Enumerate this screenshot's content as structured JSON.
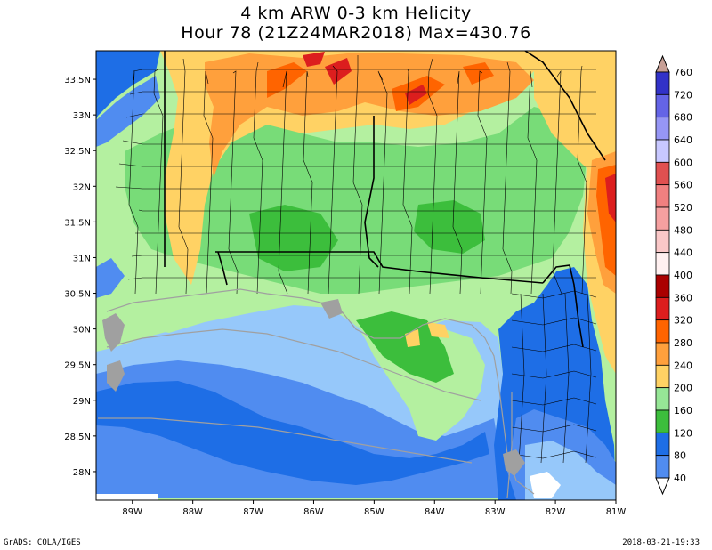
{
  "title": {
    "line1": "4 km ARW 0-3 km Helicity",
    "line2": "Hour 78 (21Z24MAR2018) Max=430.76"
  },
  "map": {
    "lat_ticks": [
      "33.5N",
      "33N",
      "32.5N",
      "32N",
      "31.5N",
      "31N",
      "30.5N",
      "30N",
      "29.5N",
      "29N",
      "28.5N",
      "28N"
    ],
    "lon_ticks": [
      "89W",
      "88W",
      "87W",
      "86W",
      "85W",
      "84W",
      "83W",
      "82W",
      "81W"
    ],
    "lat_range": [
      27.6,
      33.9
    ],
    "lon_range": [
      -89.6,
      -81.0
    ],
    "max_value": 430.76
  },
  "colorbar": {
    "levels": [
      "760",
      "720",
      "680",
      "640",
      "600",
      "560",
      "520",
      "480",
      "440",
      "400",
      "360",
      "320",
      "280",
      "240",
      "200",
      "160",
      "120",
      "80",
      "40"
    ],
    "colors": [
      "#3232c8",
      "#6464e6",
      "#9696f5",
      "#c8c8ff",
      "#e05050",
      "#f08080",
      "#f5a0a0",
      "#fac8c8",
      "#fff0f0",
      "#aa0000",
      "#dc1e1e",
      "#ff6400",
      "#ffa03c",
      "#ffd264",
      "#96e696",
      "#3cbe3c",
      "#1e6ee6",
      "#508cf0",
      "#96c8fa"
    ],
    "top_color": "#c8a096",
    "bottom_color": "#ffffff"
  },
  "colors": {
    "ocean_deep": "#1e6ee6",
    "ocean_mid": "#508cf0",
    "ocean_light": "#96c8fa",
    "land_light_green": "#b4f0a0",
    "land_green": "#78dc78",
    "land_mid_green": "#3cbe3c",
    "yellow": "#ffd264",
    "orange": "#ffa03c",
    "dark_orange": "#ff6400",
    "red": "#dc1e1e",
    "county_line": "#000000",
    "state_line": "#a0a0a0"
  },
  "footer": {
    "left": "GrADS: COLA/IGES",
    "right": "2018-03-21-19:33"
  }
}
